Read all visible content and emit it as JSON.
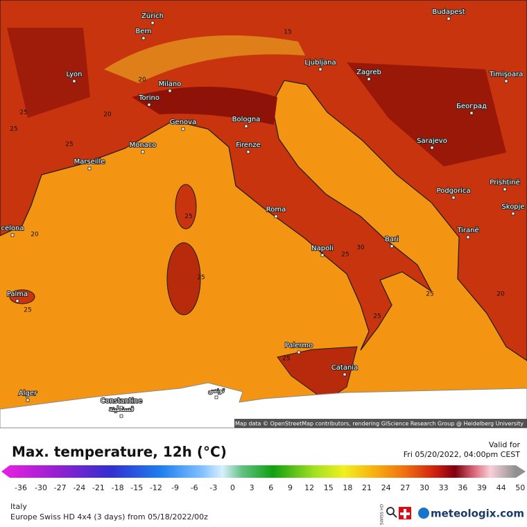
{
  "map": {
    "attribution": "Map data © OpenStreetMap contributors, rendering GIScience Research Group @ Heidelberg University",
    "cities": [
      "Budapest",
      "Zürich",
      "Bern",
      "Ljubljana",
      "Zagreb",
      "Timişoara",
      "Lyon",
      "Milano",
      "Torino",
      "Београд",
      "Genova",
      "Bologna",
      "Sarajevo",
      "Monaco",
      "Firenze",
      "Marseille",
      "Podgorica",
      "Prishtinë",
      "Skopje",
      "Roma",
      "Tiranë",
      "celona",
      "Bari",
      "Napoli",
      "Palma",
      "Palermo",
      "Catania",
      "Alger",
      "Constantine",
      "قسنطينة",
      "تونس"
    ],
    "contour_labels": [
      "25",
      "25",
      "25",
      "25",
      "25",
      "25",
      "25",
      "25",
      "25",
      "25",
      "20",
      "20",
      "20",
      "20",
      "30",
      "15"
    ]
  },
  "header": {
    "title": "Max. temperature, 12h (°C)",
    "valid_label": "Valid for",
    "valid_time": "Fri 05/20/2022, 04:00pm CEST"
  },
  "colorbar": {
    "ticks": [
      -36,
      -30,
      -27,
      -24,
      -21,
      -18,
      -15,
      -12,
      -9,
      -6,
      -3,
      0,
      3,
      6,
      9,
      12,
      15,
      18,
      21,
      24,
      27,
      30,
      33,
      36,
      39,
      44,
      50
    ]
  },
  "footer": {
    "region": "Italy",
    "model": "Europe Swiss HD 4x4 (3 days) from 05/18/2022/00z",
    "swiss_hd": "SWISS HD",
    "brand": "meteologix.com"
  }
}
